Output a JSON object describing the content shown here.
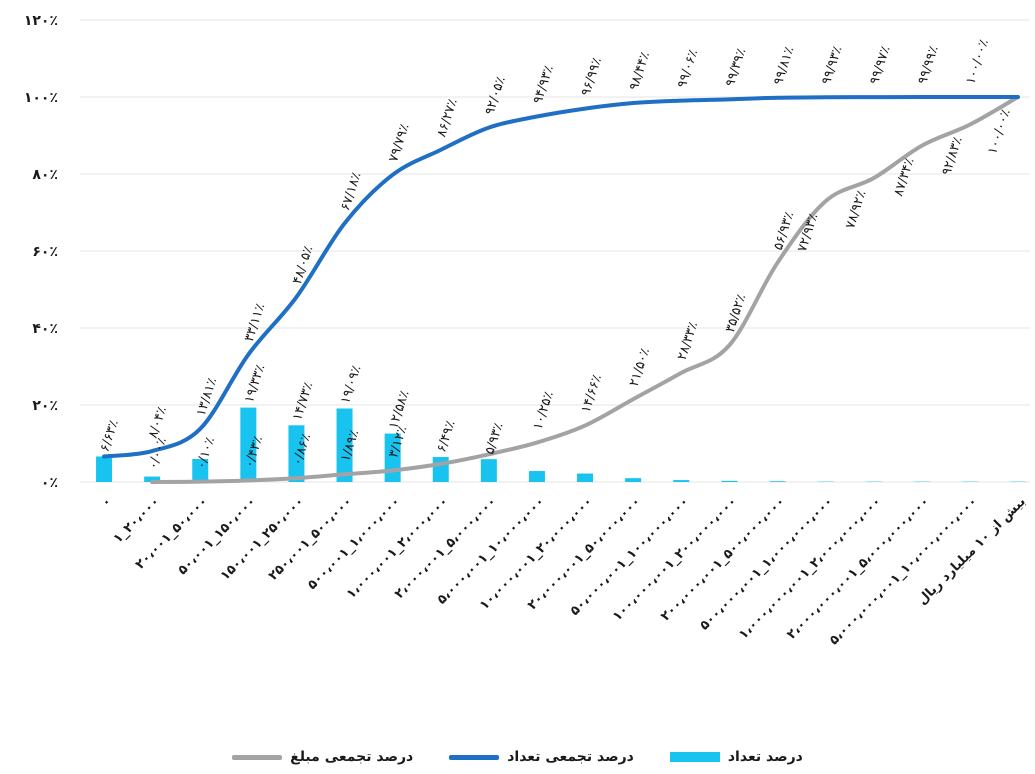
{
  "chart_data": {
    "type": "bar+line",
    "title": "",
    "xlabel": "",
    "ylabel": "",
    "ylim": [
      0,
      120
    ],
    "yticks": [
      "۰٪",
      "۲۰٪",
      "۴۰٪",
      "۶۰٪",
      "۸۰٪",
      "۱۰۰٪",
      "۱۲۰٪"
    ],
    "grid": true,
    "legend_position": "bottom",
    "categories": [
      "۰",
      "۱_۲۰،۰۰۰",
      "۲۰،۰۰۱_۵۰،۰۰۰",
      "۵۰،۰۰۱_۱۵۰،۰۰۰",
      "۱۵۰،۰۰۱_۲۵۰،۰۰۰",
      "۲۵۰،۰۰۱_۵۰۰،۰۰۰",
      "۵۰۰،۰۰۱_۱،۰۰۰،۰۰۰",
      "۱،۰۰۰،۰۰۱_۲،۰۰۰،۰۰۰",
      "۲،۰۰۰،۰۰۱_۵،۰۰۰،۰۰۰",
      "۵،۰۰۰،۰۰۱_۱۰،۰۰۰،۰۰۰",
      "۱۰،۰۰۰،۰۰۱_۲۰،۰۰۰،۰۰۰",
      "۲۰،۰۰۰،۰۰۱_۵۰،۰۰۰،۰۰۰",
      "۵۰،۰۰۰،۰۰۱_۱۰۰،۰۰۰،۰۰۰",
      "۱۰۰،۰۰۰،۰۰۱_۲۰۰،۰۰۰،۰۰۰",
      "۲۰۰،۰۰۰،۰۰۱_۵۰۰،۰۰۰،۰۰۰",
      "۵۰۰،۰۰۰،۰۰۱_۱،۰۰۰،۰۰۰،۰۰۰",
      "۱،۰۰۰،۰۰۰،۰۰۱_۲،۰۰۰،۰۰۰،۰۰۰",
      "۲،۰۰۰،۰۰۰،۰۰۱_۵،۰۰۰،۰۰۰،۰۰۰",
      "۵،۰۰۰،۰۰۰،۰۰۱_۱۰،۰۰۰،۰۰۰،۰۰۰",
      "بیش از ۱۰ میلیارد ریال"
    ],
    "series": [
      {
        "name": "درصد تعداد",
        "kind": "bar",
        "color": "#19c3f0",
        "values": [
          6.63,
          1.41,
          5.98,
          19.33,
          14.73,
          19.09,
          12.58,
          6.49,
          5.93,
          2.85,
          2.2,
          1.0,
          0.5,
          0.3,
          0.2,
          0.1,
          0.1,
          0.1,
          0.1,
          0.1
        ],
        "labels": [
          "۶/۶۳٪",
          "",
          "",
          "۱۹/۳۳٪",
          "۱۴/۷۳٪",
          "۱۹/۰۹٪",
          "۱۲/۵۸٪",
          "۶/۴۹٪",
          "۵/۹۳٪",
          "",
          "",
          "",
          "",
          "",
          "",
          "",
          "",
          "",
          "",
          ""
        ]
      },
      {
        "name": "درصد تجمعی تعداد",
        "kind": "line",
        "color": "#1f6fc5",
        "values": [
          6.63,
          8.04,
          13.81,
          33.11,
          48.05,
          67.18,
          79.79,
          86.27,
          92.05,
          94.93,
          96.99,
          98.44,
          99.06,
          99.39,
          99.81,
          99.93,
          99.97,
          99.99,
          100,
          100
        ],
        "labels": [
          "",
          "۸/۰۴٪",
          "۱۳/۸۱٪",
          "۳۳/۱۱٪",
          "۴۸/۰۵٪",
          "۶۷/۱۸٪",
          "۷۹/۷۹٪",
          "۸۶/۲۷٪",
          "۹۲/۰۵٪",
          "۹۴/۹۳٪",
          "۹۶/۹۹٪",
          "۹۸/۴۴٪",
          "۹۹/۰۶٪",
          "۹۹/۳۹٪",
          "۹۹/۸۱٪",
          "۹۹/۹۳٪",
          "۹۹/۹۷٪",
          "۹۹/۹۹٪",
          "۱۰۰/۰۰٪",
          ""
        ]
      },
      {
        "name": "درصد تجمعی مبلغ",
        "kind": "line",
        "color": "#a3a3a3",
        "values": [
          null,
          0.0,
          0.1,
          0.4,
          1.0,
          2.0,
          3.0,
          4.7,
          7.2,
          10.25,
          14.66,
          21.5,
          28.33,
          35.52,
          56.93,
          72.93,
          78.92,
          87.34,
          92.83,
          100
        ],
        "labels": [
          "",
          "۰/۰۰٪",
          "۰/۱۰٪",
          "۰/۴۳٪",
          "۰/۸۶٪",
          "۱/۸۹٪",
          "۳/۱۲٪",
          "",
          "",
          "۱۰/۲۵٪",
          "۱۴/۶۶٪",
          "۲۱/۵۰٪",
          "۲۸/۳۳٪",
          "۳۵/۵۲٪",
          "۵۶/۹۳٪",
          "۷۲/۹۳٪",
          "۷۸/۹۲٪",
          "۸۷/۳۴٪",
          "۹۲/۸۳٪",
          "۱۰۰/۰۰٪"
        ]
      }
    ]
  },
  "legend": {
    "items": [
      {
        "label": "درصد تعداد",
        "color": "#19c3f0"
      },
      {
        "label": "درصد تجمعی تعداد",
        "color": "#1f6fc5"
      },
      {
        "label": "درصد تجمعی مبلغ",
        "color": "#a3a3a3"
      }
    ]
  }
}
